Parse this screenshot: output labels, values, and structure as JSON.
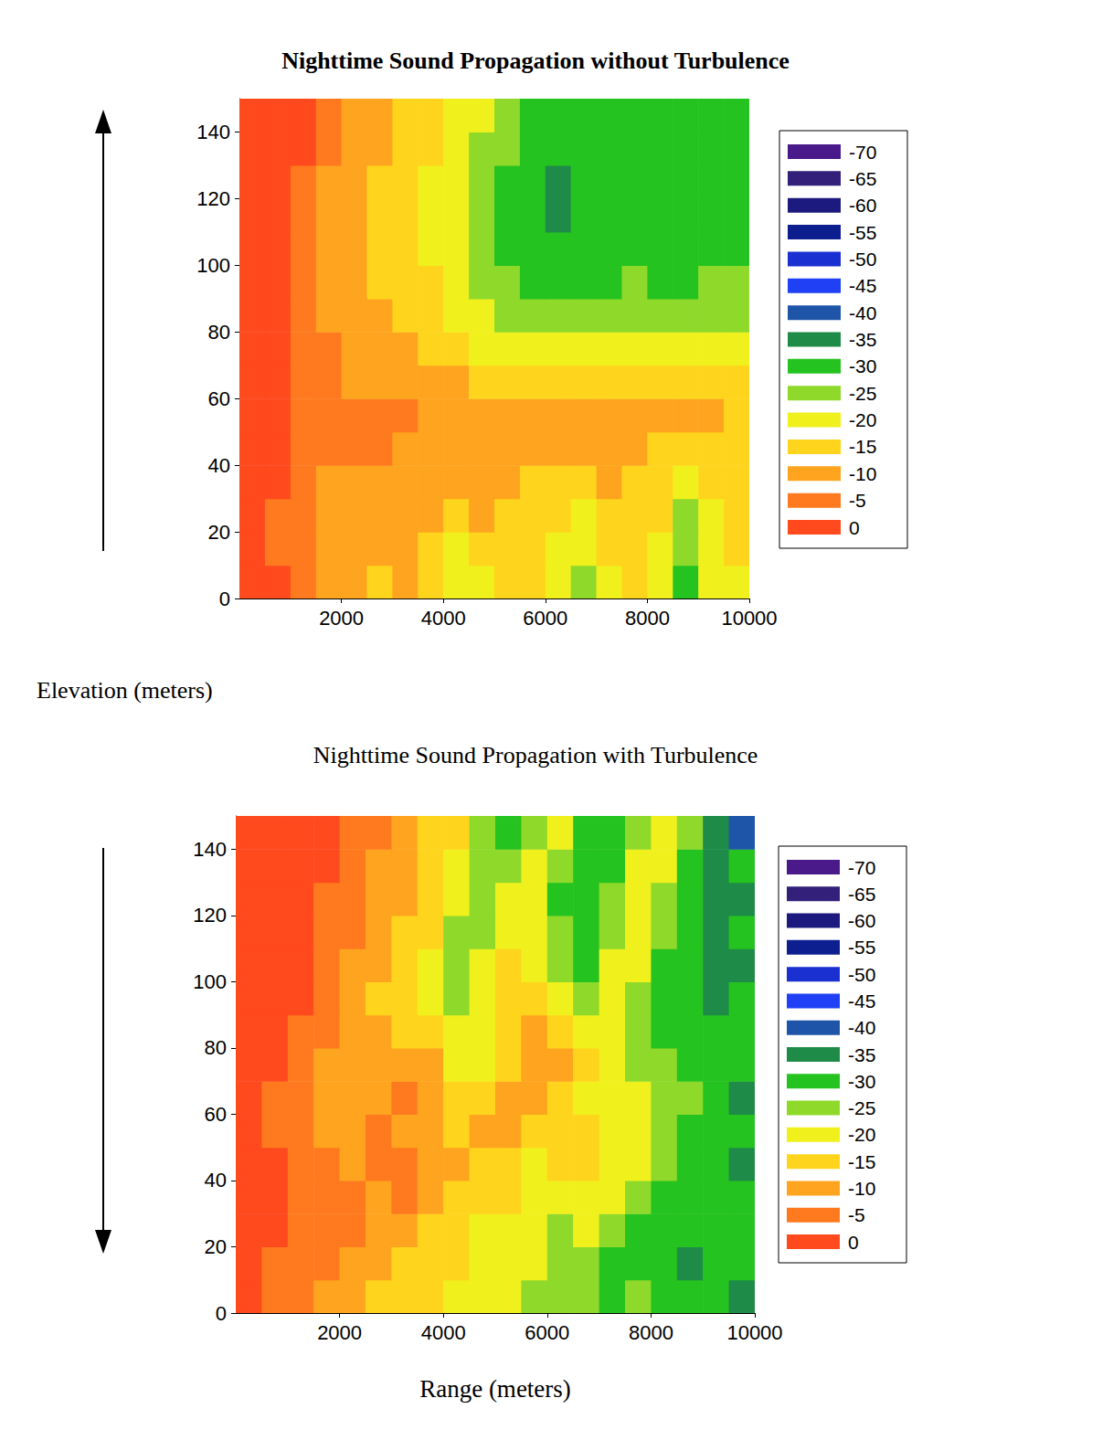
{
  "chart_data": [
    {
      "type": "heatmap",
      "title": "Nighttime Sound Propagation without Turbulence",
      "ylabel": "Elevation (meters)",
      "xlim": [
        0,
        10000
      ],
      "xticks": [
        2000,
        4000,
        6000,
        8000,
        10000
      ],
      "ylim": [
        0,
        150
      ],
      "yticks": [
        0,
        20,
        40,
        60,
        80,
        100,
        120,
        140
      ],
      "grid": false,
      "x_edges": [
        0,
        500,
        1000,
        1500,
        2000,
        2500,
        3000,
        3500,
        4000,
        4500,
        5000,
        5500,
        6000,
        6500,
        7000,
        7500,
        8000,
        8500,
        9000,
        9500,
        10000
      ],
      "y_edges": [
        0,
        10,
        20,
        30,
        40,
        50,
        60,
        70,
        80,
        90,
        100,
        110,
        120,
        130,
        140,
        150
      ],
      "cells": [
        [
          0,
          0,
          -5,
          -10,
          -10,
          -15,
          -10,
          -15,
          -20,
          -20,
          -15,
          -15,
          -20,
          -25,
          -20,
          -15,
          -20,
          -30,
          -20,
          -20
        ],
        [
          0,
          -5,
          -5,
          -10,
          -10,
          -10,
          -10,
          -15,
          -20,
          -15,
          -15,
          -15,
          -20,
          -20,
          -15,
          -15,
          -20,
          -25,
          -20,
          -15
        ],
        [
          0,
          -5,
          -5,
          -10,
          -10,
          -10,
          -10,
          -10,
          -15,
          -10,
          -15,
          -15,
          -15,
          -20,
          -15,
          -15,
          -15,
          -25,
          -20,
          -15
        ],
        [
          0,
          0,
          -5,
          -10,
          -10,
          -10,
          -10,
          -10,
          -10,
          -10,
          -10,
          -15,
          -15,
          -15,
          -10,
          -15,
          -15,
          -20,
          -15,
          -15
        ],
        [
          0,
          0,
          -5,
          -5,
          -5,
          -5,
          -10,
          -10,
          -10,
          -10,
          -10,
          -10,
          -10,
          -10,
          -10,
          -10,
          -15,
          -15,
          -15,
          -15
        ],
        [
          0,
          0,
          -5,
          -5,
          -5,
          -5,
          -5,
          -10,
          -10,
          -10,
          -10,
          -10,
          -10,
          -10,
          -10,
          -10,
          -10,
          -10,
          -10,
          -15
        ],
        [
          0,
          0,
          -5,
          -5,
          -10,
          -10,
          -10,
          -10,
          -10,
          -15,
          -15,
          -15,
          -15,
          -15,
          -15,
          -15,
          -15,
          -15,
          -15,
          -15
        ],
        [
          0,
          0,
          -5,
          -5,
          -10,
          -10,
          -10,
          -15,
          -15,
          -20,
          -20,
          -20,
          -20,
          -20,
          -20,
          -20,
          -20,
          -20,
          -20,
          -20
        ],
        [
          0,
          0,
          -5,
          -10,
          -10,
          -10,
          -15,
          -15,
          -20,
          -20,
          -25,
          -25,
          -25,
          -25,
          -25,
          -25,
          -25,
          -25,
          -25,
          -25
        ],
        [
          0,
          0,
          -5,
          -10,
          -10,
          -15,
          -15,
          -15,
          -20,
          -25,
          -25,
          -30,
          -30,
          -30,
          -30,
          -25,
          -30,
          -30,
          -25,
          -25
        ],
        [
          0,
          0,
          -5,
          -10,
          -10,
          -15,
          -15,
          -20,
          -20,
          -25,
          -30,
          -30,
          -30,
          -30,
          -30,
          -30,
          -30,
          -30,
          -30,
          -30
        ],
        [
          0,
          0,
          -5,
          -10,
          -10,
          -15,
          -15,
          -20,
          -20,
          -25,
          -30,
          -30,
          -35,
          -30,
          -30,
          -30,
          -30,
          -30,
          -30,
          -30
        ],
        [
          0,
          0,
          -5,
          -10,
          -10,
          -15,
          -15,
          -20,
          -20,
          -25,
          -30,
          -30,
          -35,
          -30,
          -30,
          -30,
          -30,
          -30,
          -30,
          -30
        ],
        [
          0,
          0,
          0,
          -5,
          -10,
          -10,
          -15,
          -15,
          -20,
          -25,
          -25,
          -30,
          -30,
          -30,
          -30,
          -30,
          -30,
          -30,
          -30,
          -30
        ],
        [
          0,
          0,
          0,
          -5,
          -10,
          -10,
          -15,
          -15,
          -20,
          -20,
          -25,
          -30,
          -30,
          -30,
          -30,
          -30,
          -30,
          -30,
          -30,
          -30
        ]
      ],
      "colorbar": {
        "range": [
          -70,
          0
        ],
        "ticks": [
          -70,
          -65,
          -60,
          -55,
          -50,
          -45,
          -40,
          -35,
          -30,
          -25,
          -20,
          -15,
          -10,
          -5,
          0
        ],
        "colors": [
          "#4b1a8a",
          "#33207a",
          "#1c1a7e",
          "#0d1e8e",
          "#1a30d0",
          "#1f40f5",
          "#1f55a8",
          "#1e8c48",
          "#25c31f",
          "#8fd92a",
          "#f0f01c",
          "#ffd41c",
          "#ffa41e",
          "#ff7a1e",
          "#ff4a1e"
        ]
      }
    },
    {
      "type": "heatmap",
      "title": "Nighttime Sound Propagation with Turbulence",
      "xlabel": "Range (meters)",
      "xlim": [
        0,
        10000
      ],
      "xticks": [
        2000,
        4000,
        6000,
        8000,
        10000
      ],
      "ylim": [
        0,
        150
      ],
      "yticks": [
        0,
        20,
        40,
        60,
        80,
        100,
        120,
        140
      ],
      "grid": false,
      "x_edges": [
        0,
        500,
        1000,
        1500,
        2000,
        2500,
        3000,
        3500,
        4000,
        4500,
        5000,
        5500,
        6000,
        6500,
        7000,
        7500,
        8000,
        8500,
        9000,
        9500,
        10000
      ],
      "y_edges": [
        0,
        10,
        20,
        30,
        40,
        50,
        60,
        70,
        80,
        90,
        100,
        110,
        120,
        130,
        140,
        150
      ],
      "cells": [
        [
          0,
          -5,
          -5,
          -10,
          -10,
          -15,
          -15,
          -15,
          -20,
          -20,
          -20,
          -25,
          -25,
          -25,
          -30,
          -25,
          -30,
          -30,
          -30,
          -35
        ],
        [
          0,
          -5,
          -5,
          -5,
          -10,
          -10,
          -15,
          -15,
          -15,
          -20,
          -20,
          -20,
          -25,
          -25,
          -30,
          -30,
          -30,
          -35,
          -30,
          -30
        ],
        [
          0,
          0,
          -5,
          -5,
          -5,
          -10,
          -10,
          -15,
          -15,
          -20,
          -20,
          -20,
          -25,
          -20,
          -25,
          -30,
          -30,
          -30,
          -30,
          -30
        ],
        [
          0,
          0,
          -5,
          -5,
          -5,
          -10,
          -5,
          -10,
          -15,
          -15,
          -15,
          -20,
          -20,
          -20,
          -20,
          -25,
          -30,
          -30,
          -30,
          -30
        ],
        [
          0,
          0,
          -5,
          -5,
          -10,
          -5,
          -5,
          -10,
          -10,
          -15,
          -15,
          -20,
          -15,
          -15,
          -20,
          -20,
          -25,
          -30,
          -30,
          -35
        ],
        [
          0,
          -5,
          -5,
          -10,
          -10,
          -5,
          -10,
          -10,
          -15,
          -10,
          -10,
          -15,
          -15,
          -15,
          -20,
          -20,
          -25,
          -30,
          -30,
          -30
        ],
        [
          0,
          -5,
          -5,
          -10,
          -10,
          -10,
          -5,
          -10,
          -15,
          -15,
          -10,
          -10,
          -15,
          -20,
          -20,
          -20,
          -25,
          -25,
          -30,
          -35
        ],
        [
          0,
          0,
          -5,
          -10,
          -10,
          -10,
          -10,
          -10,
          -20,
          -20,
          -15,
          -10,
          -10,
          -15,
          -20,
          -25,
          -25,
          -30,
          -30,
          -30
        ],
        [
          0,
          0,
          -5,
          -5,
          -10,
          -10,
          -15,
          -15,
          -20,
          -20,
          -15,
          -10,
          -15,
          -20,
          -20,
          -25,
          -30,
          -30,
          -30,
          -30
        ],
        [
          0,
          0,
          0,
          -5,
          -10,
          -15,
          -15,
          -20,
          -25,
          -20,
          -15,
          -15,
          -20,
          -25,
          -20,
          -25,
          -30,
          -30,
          -35,
          -30
        ],
        [
          0,
          0,
          0,
          -5,
          -10,
          -10,
          -15,
          -20,
          -25,
          -20,
          -15,
          -20,
          -25,
          -30,
          -20,
          -20,
          -30,
          -30,
          -35,
          -35
        ],
        [
          0,
          0,
          0,
          -5,
          -5,
          -10,
          -15,
          -15,
          -25,
          -25,
          -20,
          -20,
          -25,
          -30,
          -25,
          -20,
          -25,
          -30,
          -35,
          -30
        ],
        [
          0,
          0,
          0,
          -5,
          -5,
          -10,
          -10,
          -15,
          -20,
          -25,
          -20,
          -20,
          -30,
          -30,
          -25,
          -20,
          -25,
          -30,
          -35,
          -35
        ],
        [
          0,
          0,
          0,
          0,
          -5,
          -10,
          -10,
          -15,
          -20,
          -25,
          -25,
          -20,
          -25,
          -30,
          -30,
          -20,
          -20,
          -30,
          -35,
          -30
        ],
        [
          0,
          0,
          0,
          0,
          -5,
          -5,
          -10,
          -15,
          -15,
          -25,
          -30,
          -25,
          -20,
          -30,
          -30,
          -25,
          -20,
          -25,
          -35,
          -40
        ]
      ],
      "colorbar": {
        "range": [
          -70,
          0
        ],
        "ticks": [
          -70,
          -65,
          -60,
          -55,
          -50,
          -45,
          -40,
          -35,
          -30,
          -25,
          -20,
          -15,
          -10,
          -5,
          0
        ],
        "colors": [
          "#4b1a8a",
          "#33207a",
          "#1c1a7e",
          "#0d1e8e",
          "#1a30d0",
          "#1f40f5",
          "#1f55a8",
          "#1e8c48",
          "#25c31f",
          "#8fd92a",
          "#f0f01c",
          "#ffd41c",
          "#ffa41e",
          "#ff7a1e",
          "#ff4a1e"
        ]
      }
    }
  ]
}
